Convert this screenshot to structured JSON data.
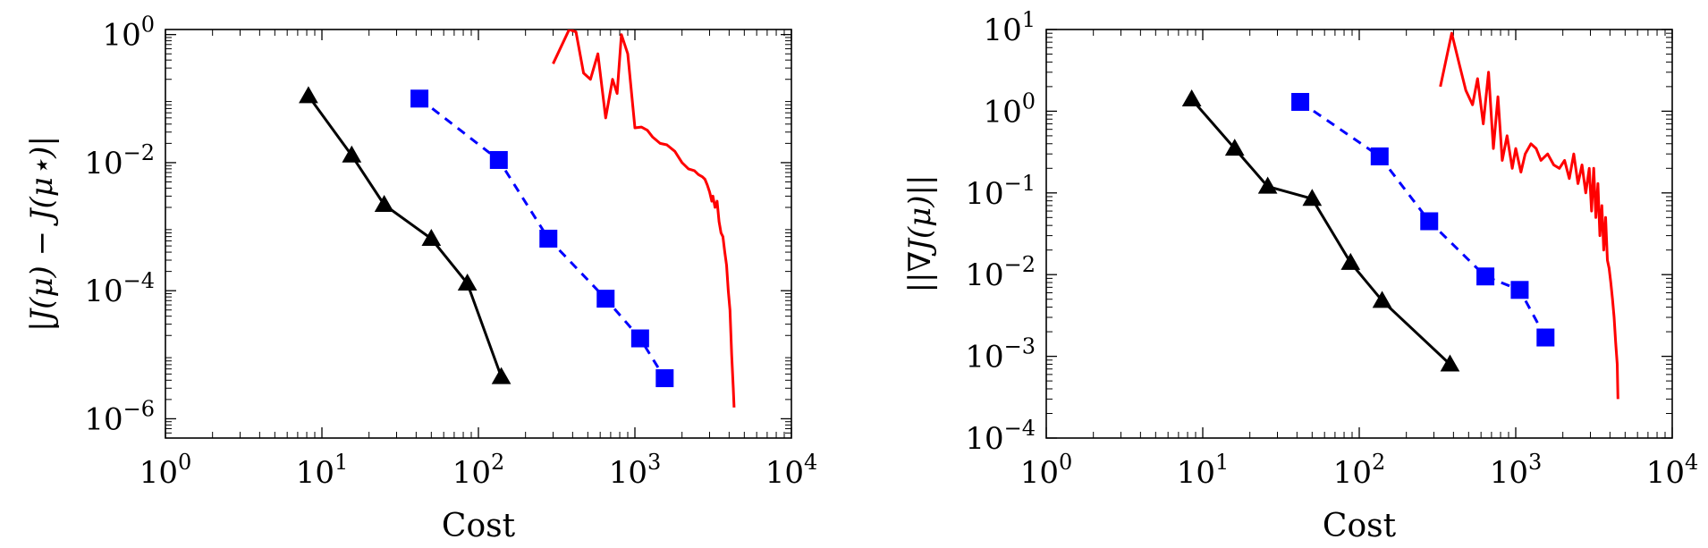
{
  "chart_data": [
    {
      "type": "line",
      "xlabel": "Cost",
      "ylabel": "|J(μ) − J(μ⋆)|",
      "xscale": "log",
      "yscale": "log",
      "xlim": [
        1,
        10000
      ],
      "ylim": [
        5e-07,
        1.2
      ],
      "xticks": [
        {
          "value": 1,
          "base": "10",
          "exp": "0"
        },
        {
          "value": 10,
          "base": "10",
          "exp": "1"
        },
        {
          "value": 100,
          "base": "10",
          "exp": "2"
        },
        {
          "value": 1000,
          "base": "10",
          "exp": "3"
        },
        {
          "value": 10000,
          "base": "10",
          "exp": "4"
        }
      ],
      "yticks": [
        {
          "value": 1,
          "base": "10",
          "exp": "0"
        },
        {
          "value": 0.01,
          "base": "10",
          "exp": "−2"
        },
        {
          "value": 0.0001,
          "base": "10",
          "exp": "−4"
        },
        {
          "value": 1e-06,
          "base": "10",
          "exp": "−6"
        }
      ],
      "grid": false,
      "series": [
        {
          "color": "#000000",
          "style": "solid",
          "marker": "triangle",
          "x": [
            8.2,
            15.5,
            25,
            50,
            85,
            140
          ],
          "y": [
            0.11,
            0.013,
            0.0022,
            0.00065,
            0.00013,
            4.5e-06
          ]
        },
        {
          "color": "#0000ff",
          "style": "dashed",
          "marker": "square",
          "x": [
            42,
            135,
            280,
            650,
            1080,
            1550
          ],
          "y": [
            0.1,
            0.011,
            0.00065,
            7.5e-05,
            1.8e-05,
            4.3e-06
          ]
        },
        {
          "color": "#ff0000",
          "style": "solid",
          "marker": "none",
          "x": [
            300,
            380,
            420,
            470,
            520,
            580,
            650,
            720,
            770,
            820,
            900,
            1000,
            1100,
            1200,
            1300,
            1450,
            1600,
            1800,
            2000,
            2200,
            2400,
            2550,
            2700,
            2800,
            2900,
            3000,
            3100,
            3150,
            3250,
            3350,
            3450,
            3550,
            3650,
            3750,
            3850,
            3950,
            4050,
            4150,
            4250,
            4300
          ],
          "y": [
            0.35,
            1.2,
            1.1,
            0.25,
            0.2,
            0.5,
            0.05,
            0.2,
            0.12,
            1.0,
            0.5,
            0.035,
            0.036,
            0.032,
            0.025,
            0.02,
            0.019,
            0.015,
            0.01,
            0.008,
            0.0075,
            0.0065,
            0.006,
            0.0055,
            0.0045,
            0.0035,
            0.0025,
            0.003,
            0.002,
            0.0025,
            0.0012,
            0.0008,
            0.0007,
            0.0004,
            0.00025,
            0.0001,
            5e-05,
            1e-05,
            3e-06,
            1.5e-06
          ]
        }
      ]
    },
    {
      "type": "line",
      "xlabel": "Cost",
      "ylabel": "||∇J(μ)||",
      "xscale": "log",
      "yscale": "log",
      "xlim": [
        1,
        10000
      ],
      "ylim": [
        0.0001,
        10
      ],
      "xticks": [
        {
          "value": 1,
          "base": "10",
          "exp": "0"
        },
        {
          "value": 10,
          "base": "10",
          "exp": "1"
        },
        {
          "value": 100,
          "base": "10",
          "exp": "2"
        },
        {
          "value": 1000,
          "base": "10",
          "exp": "3"
        },
        {
          "value": 10000,
          "base": "10",
          "exp": "4"
        }
      ],
      "yticks": [
        {
          "value": 10,
          "base": "10",
          "exp": "1"
        },
        {
          "value": 1,
          "base": "10",
          "exp": "0"
        },
        {
          "value": 0.1,
          "base": "10",
          "exp": "−1"
        },
        {
          "value": 0.01,
          "base": "10",
          "exp": "−2"
        },
        {
          "value": 0.001,
          "base": "10",
          "exp": "−3"
        },
        {
          "value": 0.0001,
          "base": "10",
          "exp": "−4"
        }
      ],
      "grid": false,
      "series": [
        {
          "color": "#000000",
          "style": "solid",
          "marker": "triangle",
          "x": [
            8.5,
            16,
            26,
            50,
            88,
            140,
            380
          ],
          "y": [
            1.4,
            0.35,
            0.12,
            0.085,
            0.014,
            0.0048,
            0.0008
          ]
        },
        {
          "color": "#0000ff",
          "style": "dashed",
          "marker": "square",
          "x": [
            42,
            135,
            280,
            640,
            1060,
            1550
          ],
          "y": [
            1.3,
            0.28,
            0.045,
            0.0095,
            0.0065,
            0.0017
          ]
        },
        {
          "color": "#ff0000",
          "style": "solid",
          "marker": "none",
          "x": [
            330,
            390,
            440,
            480,
            530,
            570,
            620,
            670,
            720,
            770,
            820,
            880,
            950,
            1000,
            1080,
            1150,
            1250,
            1350,
            1450,
            1600,
            1750,
            1900,
            2050,
            2200,
            2350,
            2500,
            2650,
            2800,
            2950,
            3050,
            3150,
            3250,
            3350,
            3450,
            3550,
            3650,
            3750,
            3850,
            3950,
            4050,
            4150,
            4250,
            4350,
            4450,
            4500
          ],
          "y": [
            2,
            9,
            3.5,
            1.8,
            1.2,
            2.5,
            0.7,
            3,
            0.35,
            1.5,
            0.25,
            0.5,
            0.2,
            0.35,
            0.18,
            0.3,
            0.4,
            0.35,
            0.25,
            0.3,
            0.22,
            0.2,
            0.25,
            0.15,
            0.3,
            0.13,
            0.22,
            0.1,
            0.2,
            0.06,
            0.2,
            0.05,
            0.13,
            0.03,
            0.07,
            0.02,
            0.05,
            0.015,
            0.012,
            0.008,
            0.005,
            0.003,
            0.0015,
            0.0008,
            0.0003
          ]
        }
      ]
    }
  ]
}
